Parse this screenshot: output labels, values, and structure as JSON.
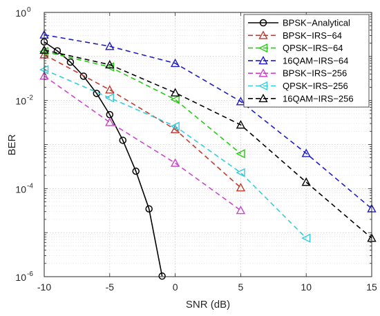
{
  "chart_data": {
    "type": "line",
    "title": "",
    "xlabel": "SNR (dB)",
    "ylabel": "BER",
    "xlim": [
      -10,
      15
    ],
    "ylim": [
      1e-06,
      1
    ],
    "yscale": "log",
    "grid": "major and minor (dotted)",
    "legend_position": "top-right",
    "xticks": [
      -10,
      -5,
      0,
      5,
      10,
      15
    ],
    "xtick_labels": [
      "-10",
      "-5",
      "0",
      "5",
      "10",
      "15"
    ],
    "yticks": [
      {
        "value": 1e-06,
        "base": "10",
        "exp": "-6"
      },
      {
        "value": 0.0001,
        "base": "10",
        "exp": "-4"
      },
      {
        "value": 0.01,
        "base": "10",
        "exp": "-2"
      },
      {
        "value": 1,
        "base": "10",
        "exp": "0"
      }
    ],
    "series": [
      {
        "name": "BPSK−Analytical",
        "color": "#000000",
        "dash": "solid",
        "marker": "circle",
        "x": [
          -10,
          -9,
          -8,
          -7,
          -6,
          -5,
          -4,
          -3,
          -2,
          -1
        ],
        "y": [
          0.214,
          0.134,
          0.0745,
          0.0357,
          0.0145,
          0.00478,
          0.00125,
          0.000248,
          3.46e-05,
          1.03e-06
        ]
      },
      {
        "name": "BPSK−IRS−64",
        "color": "#c0392b",
        "dash": "dashed",
        "marker": "triangle-up",
        "x": [
          -10,
          -5,
          0,
          5
        ],
        "y": [
          0.11,
          0.0175,
          0.0022,
          0.000105
        ]
      },
      {
        "name": "QPSK−IRS−64",
        "color": "#22cc11",
        "dash": "dashed",
        "marker": "triangle-left",
        "x": [
          -10,
          -5,
          0,
          5
        ],
        "y": [
          0.13,
          0.058,
          0.0105,
          0.00062
        ]
      },
      {
        "name": "16QAM−IRS−64",
        "color": "#1a1acc",
        "dash": "dashed",
        "marker": "triangle-up",
        "x": [
          -10,
          -5,
          0,
          5,
          10,
          15
        ],
        "y": [
          0.31,
          0.17,
          0.07,
          0.0095,
          0.00063,
          3.5e-05
        ]
      },
      {
        "name": "BPSK−IRS−256",
        "color": "#cc44cc",
        "dash": "dashed",
        "marker": "triangle-up",
        "x": [
          -10,
          -5,
          0,
          5
        ],
        "y": [
          0.036,
          0.0032,
          0.00038,
          3.2e-05
        ]
      },
      {
        "name": "QPSK−IRS−256",
        "color": "#33ccdd",
        "dash": "dashed",
        "marker": "triangle-left",
        "x": [
          -10,
          -5,
          0,
          5,
          10
        ],
        "y": [
          0.05,
          0.0115,
          0.0026,
          0.00023,
          7.5e-06
        ]
      },
      {
        "name": "16QAM−IRS−256",
        "color": "#000000",
        "dash": "dashed",
        "marker": "triangle-up",
        "x": [
          -10,
          -5,
          0,
          5,
          10,
          15
        ],
        "y": [
          0.14,
          0.065,
          0.015,
          0.0028,
          0.00014,
          7.5e-06
        ]
      }
    ]
  }
}
